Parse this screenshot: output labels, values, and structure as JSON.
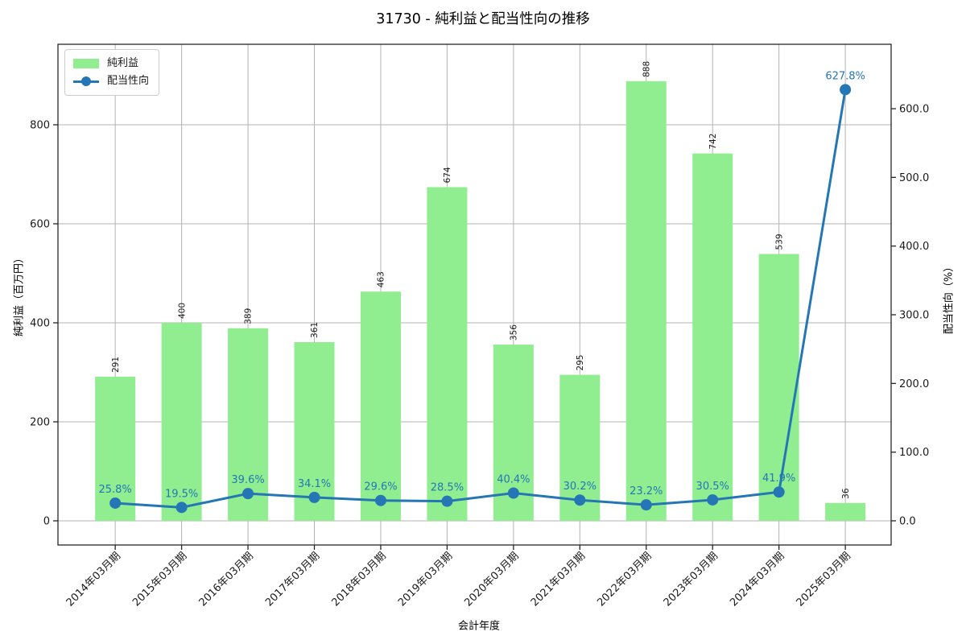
{
  "title": "31730 - 純利益と配当性向の推移",
  "chart_data": {
    "type": "bar+line",
    "categories": [
      "2014年03月期",
      "2015年03月期",
      "2016年03月期",
      "2017年03月期",
      "2018年03月期",
      "2019年03月期",
      "2020年03月期",
      "2021年03月期",
      "2022年03月期",
      "2023年03月期",
      "2024年03月期",
      "2025年03月期"
    ],
    "series": [
      {
        "name": "純利益",
        "type": "bar",
        "axis": "left",
        "color": "#90ee90",
        "values": [
          291,
          400,
          389,
          361,
          463,
          674,
          356,
          295,
          888,
          742,
          539,
          36
        ]
      },
      {
        "name": "配当性向",
        "type": "line",
        "axis": "right",
        "color": "#2477b4",
        "values": [
          25.8,
          19.5,
          39.6,
          34.1,
          29.6,
          28.5,
          40.4,
          30.2,
          23.2,
          30.5,
          41.9,
          627.8
        ],
        "point_labels": [
          "25.8%",
          "19.5%",
          "39.6%",
          "34.1%",
          "29.6%",
          "28.5%",
          "40.4%",
          "30.2%",
          "23.2%",
          "30.5%",
          "41.9%",
          "627.8%"
        ]
      }
    ],
    "axes": {
      "x": {
        "label": "会計年度",
        "lim": [
          -0.863,
          11.69
        ]
      },
      "left": {
        "label": "純利益（百万円）",
        "tick_labels": [
          "0",
          "200",
          "400",
          "600",
          "800"
        ],
        "tick_values": [
          0,
          200,
          400,
          600,
          800
        ],
        "lim": [
          -48.8,
          962.6
        ]
      },
      "right": {
        "label": "配当性向（%）",
        "tick_labels": [
          "0.0",
          "100.0",
          "200.0",
          "300.0",
          "400.0",
          "500.0",
          "600.0"
        ],
        "tick_values": [
          0,
          100,
          200,
          300,
          400,
          500,
          600
        ],
        "lim": [
          -35.2,
          693.8
        ]
      }
    },
    "grid": true,
    "legend": {
      "position": "upper left",
      "items": [
        {
          "label": "純利益",
          "swatch": "patch",
          "color": "#90ee90"
        },
        {
          "label": "配当性向",
          "swatch": "line-marker",
          "color": "#2477b4"
        }
      ]
    }
  },
  "colors": {
    "background": "#ffffff",
    "grid": "#b3b3b3",
    "spine": "#262626",
    "bar": "#90ee90",
    "line": "#2477b4",
    "text": "#1a1a1a"
  }
}
